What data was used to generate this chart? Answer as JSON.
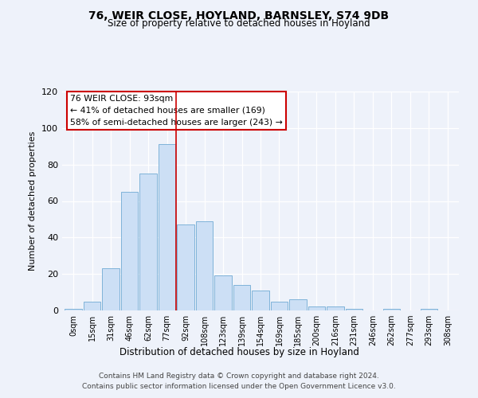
{
  "title": "76, WEIR CLOSE, HOYLAND, BARNSLEY, S74 9DB",
  "subtitle": "Size of property relative to detached houses in Hoyland",
  "xlabel": "Distribution of detached houses by size in Hoyland",
  "ylabel": "Number of detached properties",
  "bar_labels": [
    "0sqm",
    "15sqm",
    "31sqm",
    "46sqm",
    "62sqm",
    "77sqm",
    "92sqm",
    "108sqm",
    "123sqm",
    "139sqm",
    "154sqm",
    "169sqm",
    "185sqm",
    "200sqm",
    "216sqm",
    "231sqm",
    "246sqm",
    "262sqm",
    "277sqm",
    "293sqm",
    "308sqm"
  ],
  "bar_values": [
    1,
    5,
    23,
    65,
    75,
    91,
    47,
    49,
    19,
    14,
    11,
    5,
    6,
    2,
    2,
    1,
    0,
    1,
    0,
    1,
    0
  ],
  "bar_color": "#ccdff5",
  "bar_edge_color": "#7fb3d9",
  "background_color": "#eef2fa",
  "grid_color": "#ffffff",
  "vline_x_pos": 5.5,
  "vline_color": "#cc0000",
  "annotation_text": "76 WEIR CLOSE: 93sqm\n← 41% of detached houses are smaller (169)\n58% of semi-detached houses are larger (243) →",
  "annotation_box_color": "#ffffff",
  "annotation_box_edge": "#cc0000",
  "ylim": [
    0,
    120
  ],
  "yticks": [
    0,
    20,
    40,
    60,
    80,
    100,
    120
  ],
  "footer_line1": "Contains HM Land Registry data © Crown copyright and database right 2024.",
  "footer_line2": "Contains public sector information licensed under the Open Government Licence v3.0."
}
